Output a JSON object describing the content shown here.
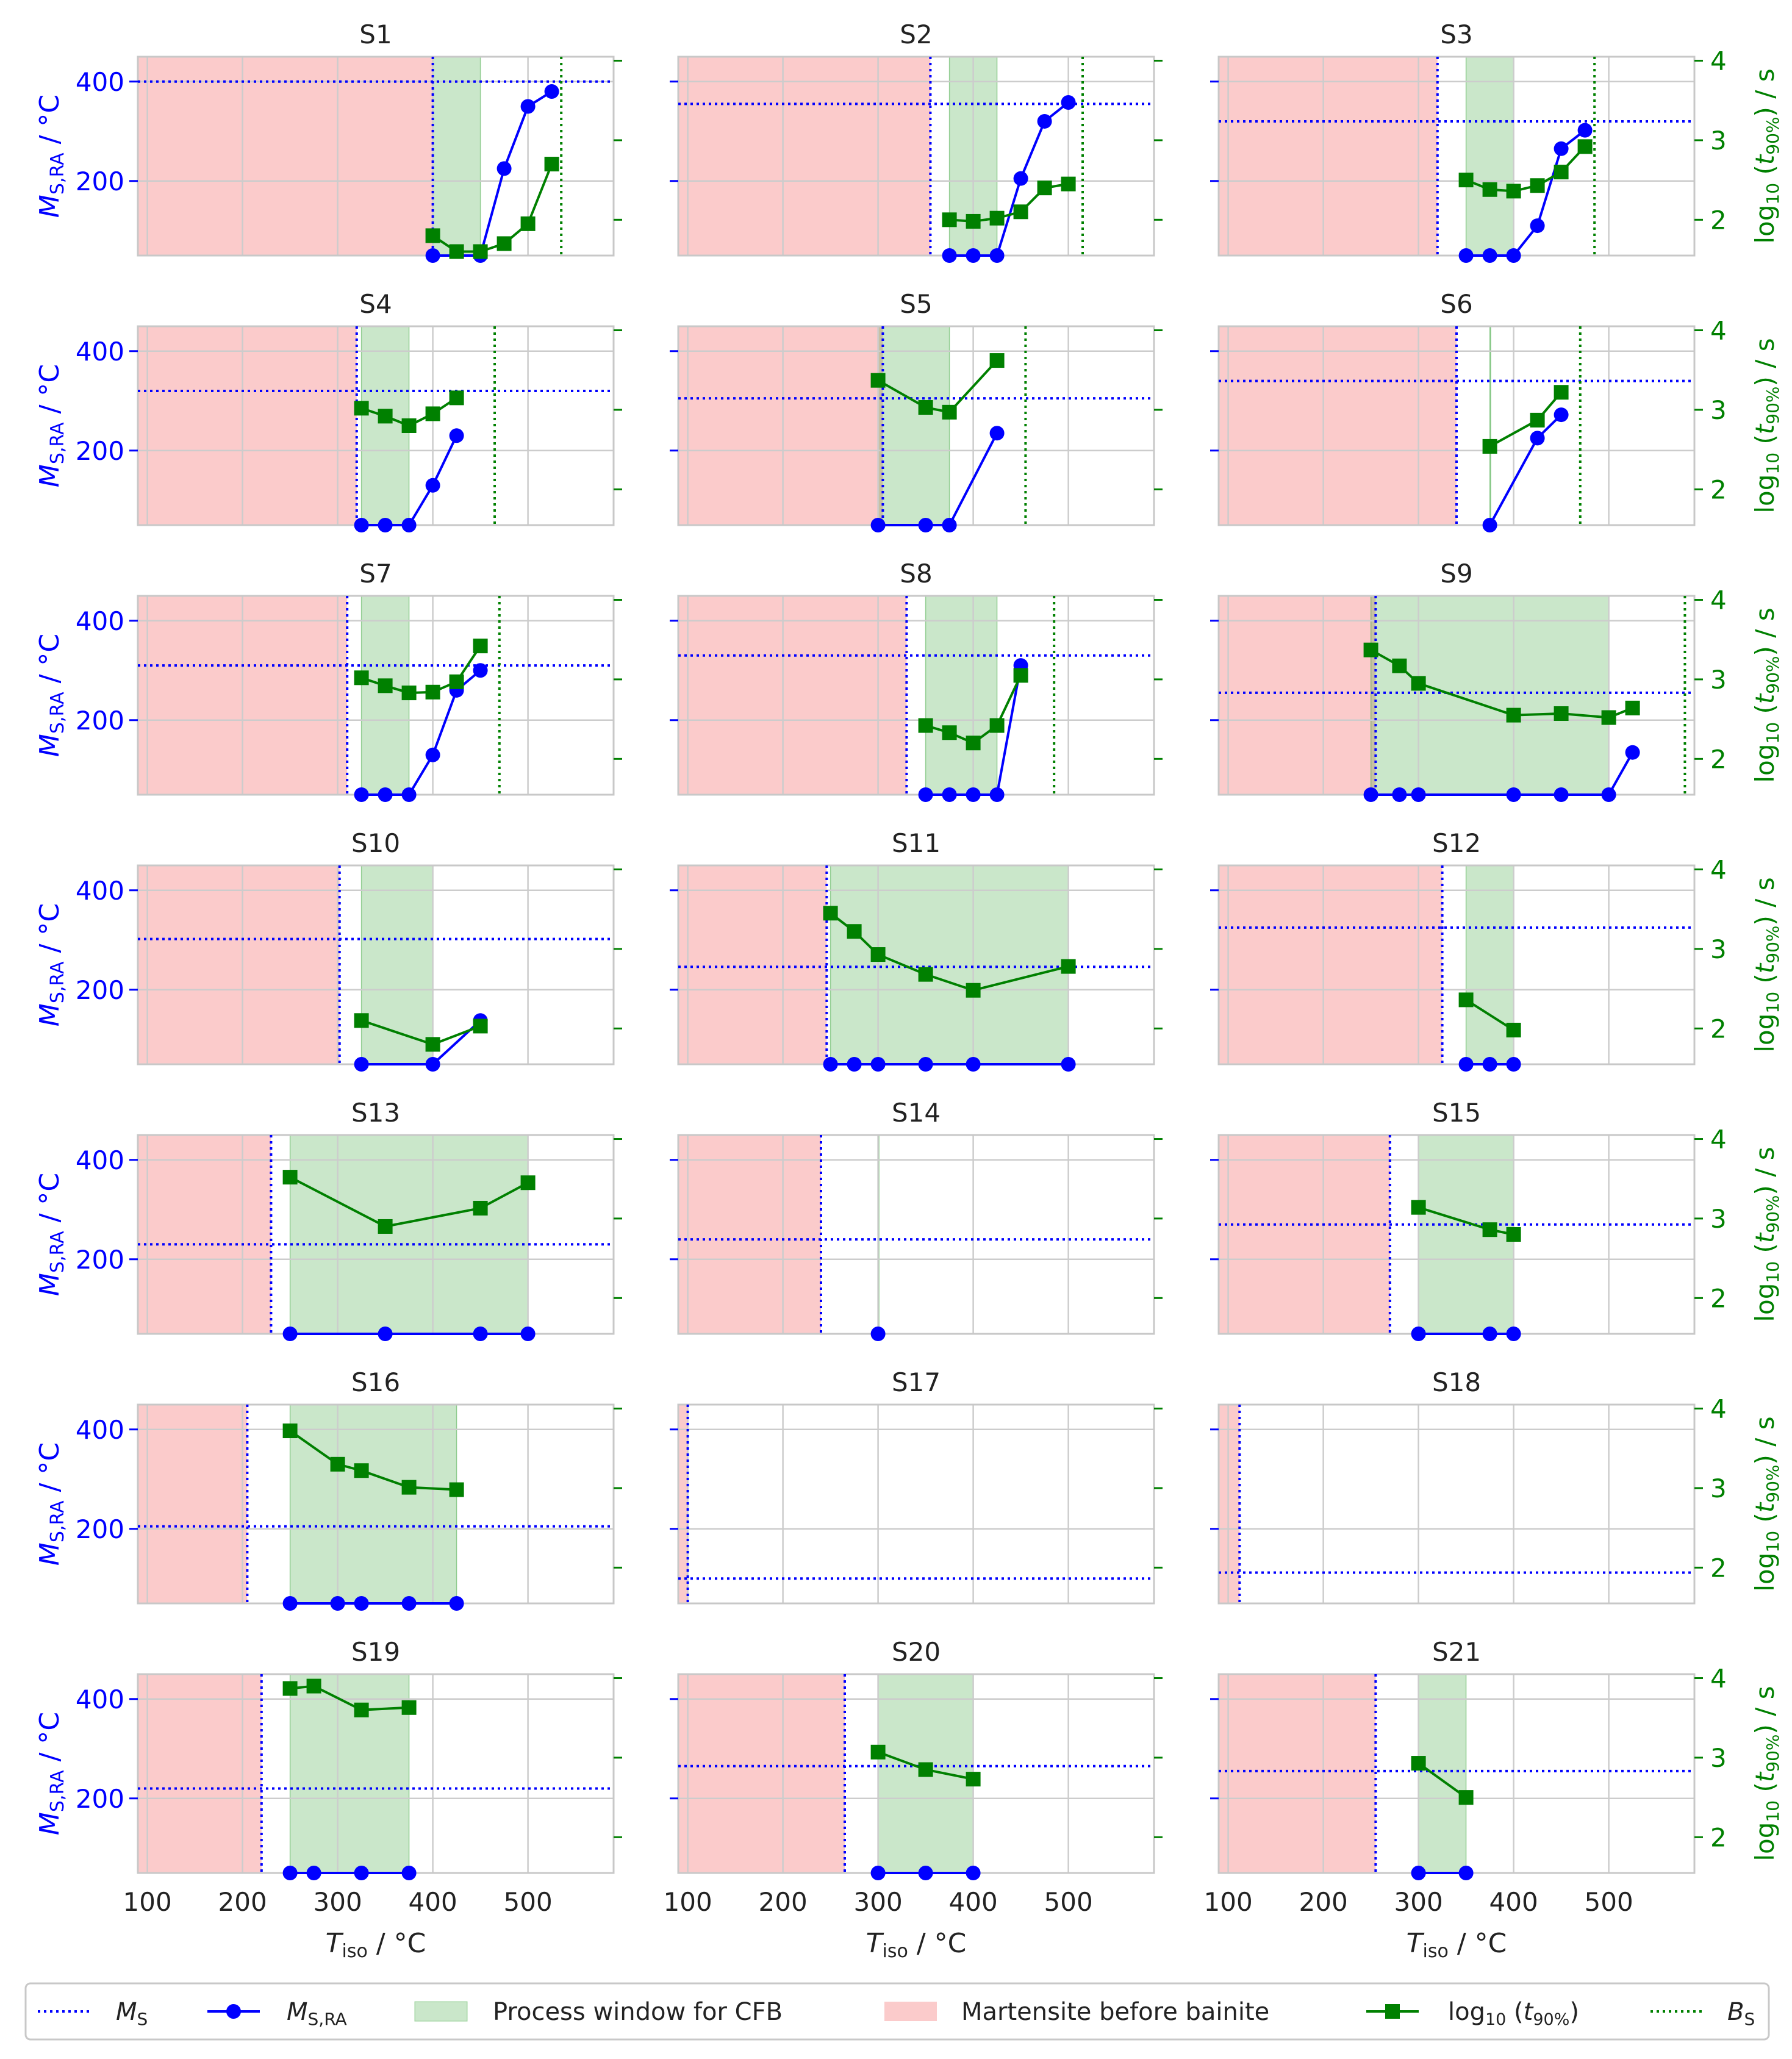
{
  "colors": {
    "ms": "#0000ff",
    "tlog": "#008000",
    "process_window": "#2ca02c",
    "martensite": "#f8a0a0",
    "grid": "#cccccc",
    "spine": "#c8c8c8",
    "text": "#222222"
  },
  "chart_data": {
    "type": "line",
    "layout": "7x3 small multiples with twin y-axes",
    "xlabel": "T_iso / °C",
    "ylabel_left": "M_S,RA / °C",
    "ylabel_right": "log10 (t_90%) / s",
    "xlim": [
      90,
      590
    ],
    "ylim_left": [
      50,
      450
    ],
    "ylim_right": [
      1.55,
      4.05
    ],
    "xticks": [
      100,
      200,
      300,
      400,
      500
    ],
    "yticks_left": [
      200,
      400
    ],
    "yticks_right": [
      2,
      3,
      4
    ],
    "grid": true,
    "legend_position": "bottom",
    "legend": {
      "ms": "M_S",
      "msra": "M_S,RA",
      "window": "Process window for CFB",
      "mart": "Martensite before bainite",
      "tlog": "log10 (t_90%)",
      "bs": "B_S"
    },
    "panels": [
      {
        "title": "S1",
        "ms": 400,
        "bs": 535,
        "window": [
          400,
          450
        ],
        "msra": [
          [
            400,
            50
          ],
          [
            450,
            50
          ],
          [
            475,
            225
          ],
          [
            500,
            350
          ],
          [
            525,
            380
          ]
        ],
        "tlog": [
          [
            400,
            1.8
          ],
          [
            425,
            1.6
          ],
          [
            450,
            1.6
          ],
          [
            475,
            1.7
          ],
          [
            500,
            1.95
          ],
          [
            525,
            2.7
          ]
        ]
      },
      {
        "title": "S2",
        "ms": 355,
        "bs": 515,
        "window": [
          375,
          425
        ],
        "msra": [
          [
            375,
            50
          ],
          [
            400,
            50
          ],
          [
            425,
            50
          ],
          [
            450,
            205
          ],
          [
            475,
            320
          ],
          [
            500,
            358
          ]
        ],
        "tlog": [
          [
            375,
            2.0
          ],
          [
            400,
            1.98
          ],
          [
            425,
            2.02
          ],
          [
            450,
            2.1
          ],
          [
            475,
            2.4
          ],
          [
            500,
            2.45
          ]
        ]
      },
      {
        "title": "S3",
        "ms": 320,
        "bs": 485,
        "window": [
          350,
          400
        ],
        "msra": [
          [
            350,
            50
          ],
          [
            375,
            50
          ],
          [
            400,
            50
          ],
          [
            425,
            110
          ],
          [
            450,
            265
          ],
          [
            475,
            302
          ]
        ],
        "tlog": [
          [
            350,
            2.5
          ],
          [
            375,
            2.38
          ],
          [
            400,
            2.36
          ],
          [
            425,
            2.43
          ],
          [
            450,
            2.6
          ],
          [
            475,
            2.92
          ]
        ]
      },
      {
        "title": "S4",
        "ms": 320,
        "bs": 465,
        "window": [
          325,
          375
        ],
        "msra": [
          [
            325,
            50
          ],
          [
            350,
            50
          ],
          [
            375,
            50
          ],
          [
            400,
            130
          ],
          [
            425,
            230
          ]
        ],
        "tlog": [
          [
            325,
            3.02
          ],
          [
            350,
            2.92
          ],
          [
            375,
            2.8
          ],
          [
            400,
            2.95
          ],
          [
            425,
            3.15
          ]
        ]
      },
      {
        "title": "S5",
        "ms": 305,
        "bs": 455,
        "window": [
          300,
          375
        ],
        "msra": [
          [
            300,
            50
          ],
          [
            350,
            50
          ],
          [
            375,
            50
          ],
          [
            425,
            235
          ]
        ],
        "tlog": [
          [
            300,
            3.37
          ],
          [
            350,
            3.03
          ],
          [
            375,
            2.97
          ],
          [
            425,
            3.62
          ]
        ]
      },
      {
        "title": "S6",
        "ms": 340,
        "bs": 470,
        "window": [
          375,
          375
        ],
        "msra": [
          [
            375,
            50
          ],
          [
            425,
            225
          ],
          [
            450,
            272
          ]
        ],
        "tlog": [
          [
            375,
            2.54
          ],
          [
            425,
            2.87
          ],
          [
            450,
            3.22
          ]
        ]
      },
      {
        "title": "S7",
        "ms": 310,
        "bs": 470,
        "window": [
          325,
          375
        ],
        "msra": [
          [
            325,
            50
          ],
          [
            350,
            50
          ],
          [
            375,
            50
          ],
          [
            400,
            130
          ],
          [
            425,
            260
          ],
          [
            450,
            300
          ]
        ],
        "tlog": [
          [
            325,
            3.02
          ],
          [
            350,
            2.92
          ],
          [
            375,
            2.83
          ],
          [
            400,
            2.84
          ],
          [
            425,
            2.97
          ],
          [
            450,
            3.42
          ]
        ]
      },
      {
        "title": "S8",
        "ms": 330,
        "bs": 485,
        "window": [
          350,
          425
        ],
        "msra": [
          [
            350,
            50
          ],
          [
            375,
            50
          ],
          [
            400,
            50
          ],
          [
            425,
            50
          ],
          [
            450,
            310
          ]
        ],
        "tlog": [
          [
            350,
            2.42
          ],
          [
            375,
            2.33
          ],
          [
            400,
            2.2
          ],
          [
            425,
            2.42
          ],
          [
            450,
            3.05
          ]
        ]
      },
      {
        "title": "S9",
        "ms": 255,
        "bs": 580,
        "window": [
          250,
          500
        ],
        "msra": [
          [
            250,
            50
          ],
          [
            280,
            50
          ],
          [
            300,
            50
          ],
          [
            400,
            50
          ],
          [
            450,
            50
          ],
          [
            500,
            50
          ],
          [
            525,
            135
          ]
        ],
        "tlog": [
          [
            250,
            3.37
          ],
          [
            280,
            3.17
          ],
          [
            300,
            2.95
          ],
          [
            400,
            2.55
          ],
          [
            450,
            2.57
          ],
          [
            500,
            2.52
          ],
          [
            525,
            2.64
          ]
        ]
      },
      {
        "title": "S10",
        "ms": 302,
        "bs": null,
        "window": [
          325,
          400
        ],
        "msra": [
          [
            325,
            50
          ],
          [
            400,
            50
          ],
          [
            450,
            138
          ]
        ],
        "tlog": [
          [
            325,
            2.1
          ],
          [
            400,
            1.8
          ],
          [
            450,
            2.03
          ]
        ]
      },
      {
        "title": "S11",
        "ms": 246,
        "bs": null,
        "window": [
          250,
          500
        ],
        "msra": [
          [
            250,
            50
          ],
          [
            275,
            50
          ],
          [
            300,
            50
          ],
          [
            350,
            50
          ],
          [
            400,
            50
          ],
          [
            500,
            50
          ]
        ],
        "tlog": [
          [
            250,
            3.45
          ],
          [
            275,
            3.22
          ],
          [
            300,
            2.93
          ],
          [
            350,
            2.68
          ],
          [
            400,
            2.48
          ],
          [
            500,
            2.78
          ]
        ]
      },
      {
        "title": "S12",
        "ms": 325,
        "bs": null,
        "window": [
          350,
          400
        ],
        "msra": [
          [
            350,
            50
          ],
          [
            375,
            50
          ],
          [
            400,
            50
          ]
        ],
        "tlog": [
          [
            350,
            2.36
          ],
          [
            400,
            1.98
          ]
        ]
      },
      {
        "title": "S13",
        "ms": 230,
        "bs": null,
        "window": [
          250,
          500
        ],
        "msra": [
          [
            250,
            50
          ],
          [
            350,
            50
          ],
          [
            450,
            50
          ],
          [
            500,
            50
          ]
        ],
        "tlog": [
          [
            250,
            3.52
          ],
          [
            350,
            2.9
          ],
          [
            450,
            3.13
          ],
          [
            500,
            3.45
          ]
        ]
      },
      {
        "title": "S14",
        "ms": 240,
        "bs": null,
        "window": [
          300,
          300
        ],
        "msra": [
          [
            300,
            50
          ]
        ],
        "tlog": []
      },
      {
        "title": "S15",
        "ms": 270,
        "bs": null,
        "window": [
          300,
          400
        ],
        "msra": [
          [
            300,
            50
          ],
          [
            375,
            50
          ],
          [
            400,
            50
          ]
        ],
        "tlog": [
          [
            300,
            3.14
          ],
          [
            375,
            2.86
          ],
          [
            400,
            2.8
          ]
        ]
      },
      {
        "title": "S16",
        "ms": 205,
        "bs": null,
        "window": [
          250,
          425
        ],
        "msra": [
          [
            250,
            50
          ],
          [
            300,
            50
          ],
          [
            325,
            50
          ],
          [
            375,
            50
          ],
          [
            425,
            50
          ]
        ],
        "tlog": [
          [
            250,
            3.72
          ],
          [
            300,
            3.3
          ],
          [
            325,
            3.22
          ],
          [
            375,
            3.01
          ],
          [
            425,
            2.98
          ]
        ]
      },
      {
        "title": "S17",
        "ms": 100,
        "bs": null,
        "window": null,
        "msra": [],
        "tlog": []
      },
      {
        "title": "S18",
        "ms": 112,
        "bs": null,
        "window": null,
        "msra": [],
        "tlog": []
      },
      {
        "title": "S19",
        "ms": 220,
        "bs": null,
        "window": [
          250,
          375
        ],
        "msra": [
          [
            250,
            50
          ],
          [
            275,
            50
          ],
          [
            325,
            50
          ],
          [
            375,
            50
          ]
        ],
        "tlog": [
          [
            250,
            3.87
          ],
          [
            275,
            3.9
          ],
          [
            325,
            3.6
          ],
          [
            375,
            3.63
          ]
        ]
      },
      {
        "title": "S20",
        "ms": 265,
        "bs": null,
        "window": [
          300,
          400
        ],
        "msra": [
          [
            300,
            50
          ],
          [
            350,
            50
          ],
          [
            400,
            50
          ]
        ],
        "tlog": [
          [
            300,
            3.07
          ],
          [
            350,
            2.85
          ],
          [
            400,
            2.73
          ]
        ]
      },
      {
        "title": "S21",
        "ms": 255,
        "bs": null,
        "window": [
          300,
          350
        ],
        "msra": [
          [
            300,
            50
          ],
          [
            350,
            50
          ]
        ],
        "tlog": [
          [
            300,
            2.93
          ],
          [
            350,
            2.5
          ]
        ]
      }
    ]
  }
}
